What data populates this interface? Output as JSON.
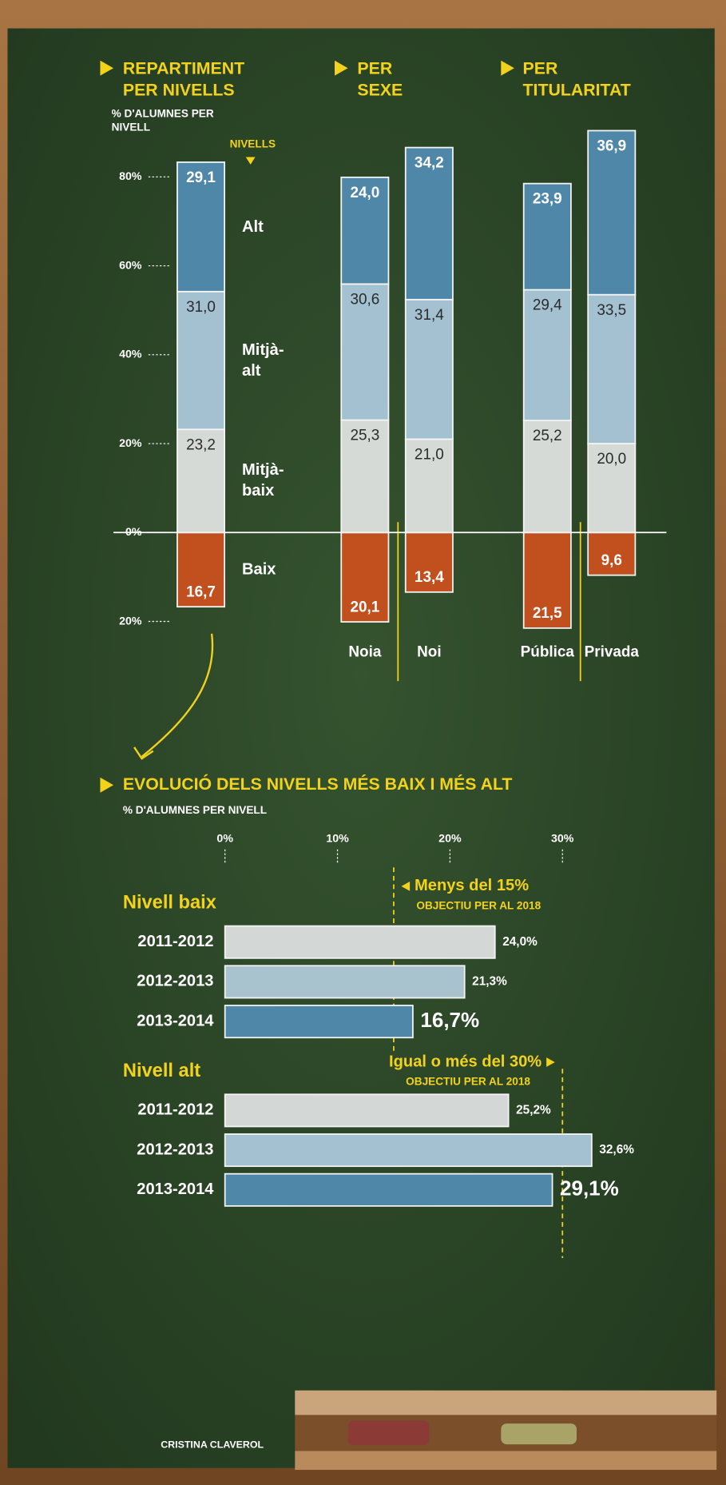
{
  "chart_data": [
    {
      "type": "stacked-bar",
      "section_titles": [
        "REPARTIMENT PER NIVELLS",
        "PER SEXE",
        "PER TITULARITAT"
      ],
      "ylabel": "% D'ALUMNES PER NIVELL",
      "legend_title": "NIVELLS",
      "categories": [
        null,
        "Noia",
        "Noi",
        "Pública",
        "Privada"
      ],
      "series": [
        {
          "name": "Baix",
          "color": "#c24f1e",
          "values": [
            -16.7,
            -20.1,
            -13.4,
            -21.5,
            -9.6
          ],
          "value_labels": [
            "16,7",
            "20,1",
            "13,4",
            "21,5",
            "9,6"
          ]
        },
        {
          "name": "Mitjà-baix",
          "color": "#d6dad6",
          "values": [
            23.2,
            25.3,
            21.0,
            25.2,
            20.0
          ],
          "value_labels": [
            "23,2",
            "25,3",
            "21,0",
            "25,2",
            "20,0"
          ]
        },
        {
          "name": "Mitjà-alt",
          "color": "#a3c1d1",
          "values": [
            31.0,
            30.6,
            31.4,
            29.4,
            33.5
          ],
          "value_labels": [
            "31,0",
            "30,6",
            "31,4",
            "29,4",
            "33,5"
          ]
        },
        {
          "name": "Alt",
          "color": "#4f87a8",
          "values": [
            29.1,
            24.0,
            34.2,
            23.9,
            36.9
          ],
          "value_labels": [
            "29,1",
            "24,0",
            "34,2",
            "23,9",
            "36,9"
          ]
        }
      ],
      "ylim": [
        -25,
        95
      ],
      "yticks": [
        {
          "value": 80,
          "label": "80%"
        },
        {
          "value": 60,
          "label": "60%"
        },
        {
          "value": 40,
          "label": "40%"
        },
        {
          "value": 20,
          "label": "20%"
        },
        {
          "value": 0,
          "label": "0%"
        },
        {
          "value": -20,
          "label": "20%"
        }
      ]
    },
    {
      "type": "hbar",
      "title": "EVOLUCIÓ DELS NIVELLS MÉS BAIX I MÉS ALT",
      "subtitle": "% D'ALUMNES PER NIVELL",
      "group_title": "Nivell baix",
      "categories": [
        "2011-2012",
        "2012-2013",
        "2013-2014"
      ],
      "values": [
        24.0,
        21.3,
        16.7
      ],
      "value_labels": [
        "24,0%",
        "21,3%",
        "16,7%"
      ],
      "colors": [
        "#d3d8d6",
        "#a8c3cd",
        "#4f87a8"
      ],
      "xlim": [
        0,
        35
      ],
      "xticks": [
        {
          "value": 0,
          "label": "0%"
        },
        {
          "value": 10,
          "label": "10%"
        },
        {
          "value": 20,
          "label": "20%"
        },
        {
          "value": 30,
          "label": "30%"
        }
      ],
      "target": {
        "value": 15,
        "label": "Menys del 15%",
        "note": "OBJECTIU PER AL 2018"
      }
    },
    {
      "type": "hbar",
      "group_title": "Nivell alt",
      "categories": [
        "2011-2012",
        "2012-2013",
        "2013-2014"
      ],
      "values": [
        25.2,
        32.6,
        29.1
      ],
      "value_labels": [
        "25,2%",
        "32,6%",
        "29,1%"
      ],
      "colors": [
        "#d3d8d6",
        "#a3c1d1",
        "#4f87a8"
      ],
      "xlim": [
        0,
        35
      ],
      "target": {
        "value": 30,
        "label": "Igual o més del 30%",
        "note": "OBJECTIU PER AL 2018"
      }
    }
  ],
  "credit": "CRISTINA CLAVEROL"
}
